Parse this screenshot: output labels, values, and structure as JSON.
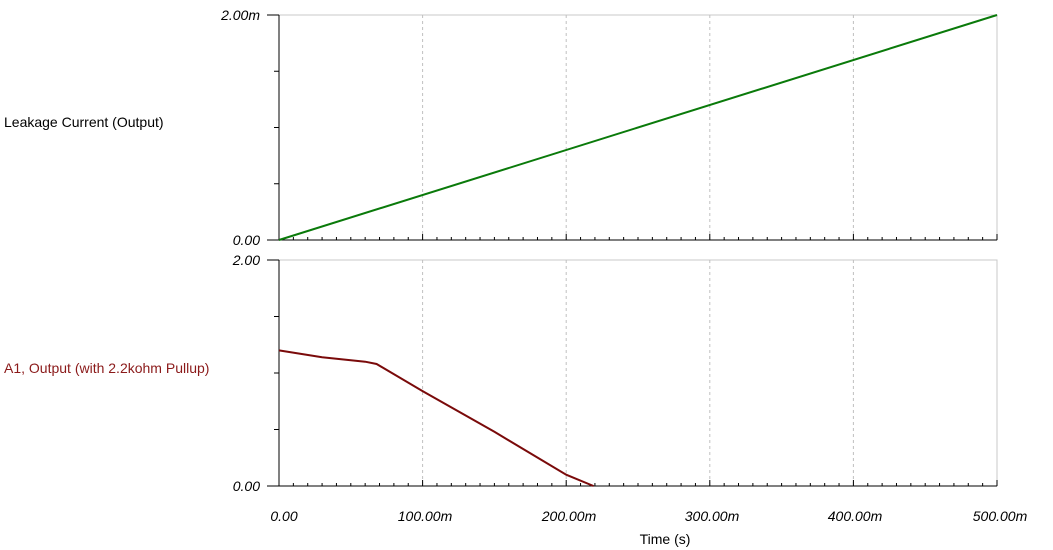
{
  "chart_data": [
    {
      "type": "line",
      "trace_label": "Leakage Current (Output)",
      "y_tick_labels": [
        "2.00m",
        "0.00"
      ],
      "ylim": [
        0,
        0.002
      ],
      "xlim": [
        0,
        0.5
      ],
      "grid": true,
      "color": "#0a7a0a",
      "series": [
        {
          "x": [
            0,
            0.5
          ],
          "y": [
            0,
            0.002
          ]
        }
      ]
    },
    {
      "type": "line",
      "trace_label": "A1, Output (with 2.2kohm Pullup)",
      "y_tick_labels": [
        "2.00",
        "0.00"
      ],
      "ylim": [
        0,
        2
      ],
      "xlim": [
        0,
        0.5
      ],
      "grid": true,
      "color": "#7a0a0a",
      "series": [
        {
          "x": [
            0,
            0.03,
            0.06,
            0.068,
            0.1,
            0.15,
            0.2,
            0.219
          ],
          "y": [
            1.2,
            1.14,
            1.1,
            1.08,
            0.84,
            0.48,
            0.1,
            0.0
          ]
        }
      ]
    }
  ],
  "x_axis": {
    "title": "Time (s)",
    "tick_labels": [
      "0.00",
      "100.00m",
      "200.00m",
      "300.00m",
      "400.00m",
      "500.00m"
    ]
  }
}
